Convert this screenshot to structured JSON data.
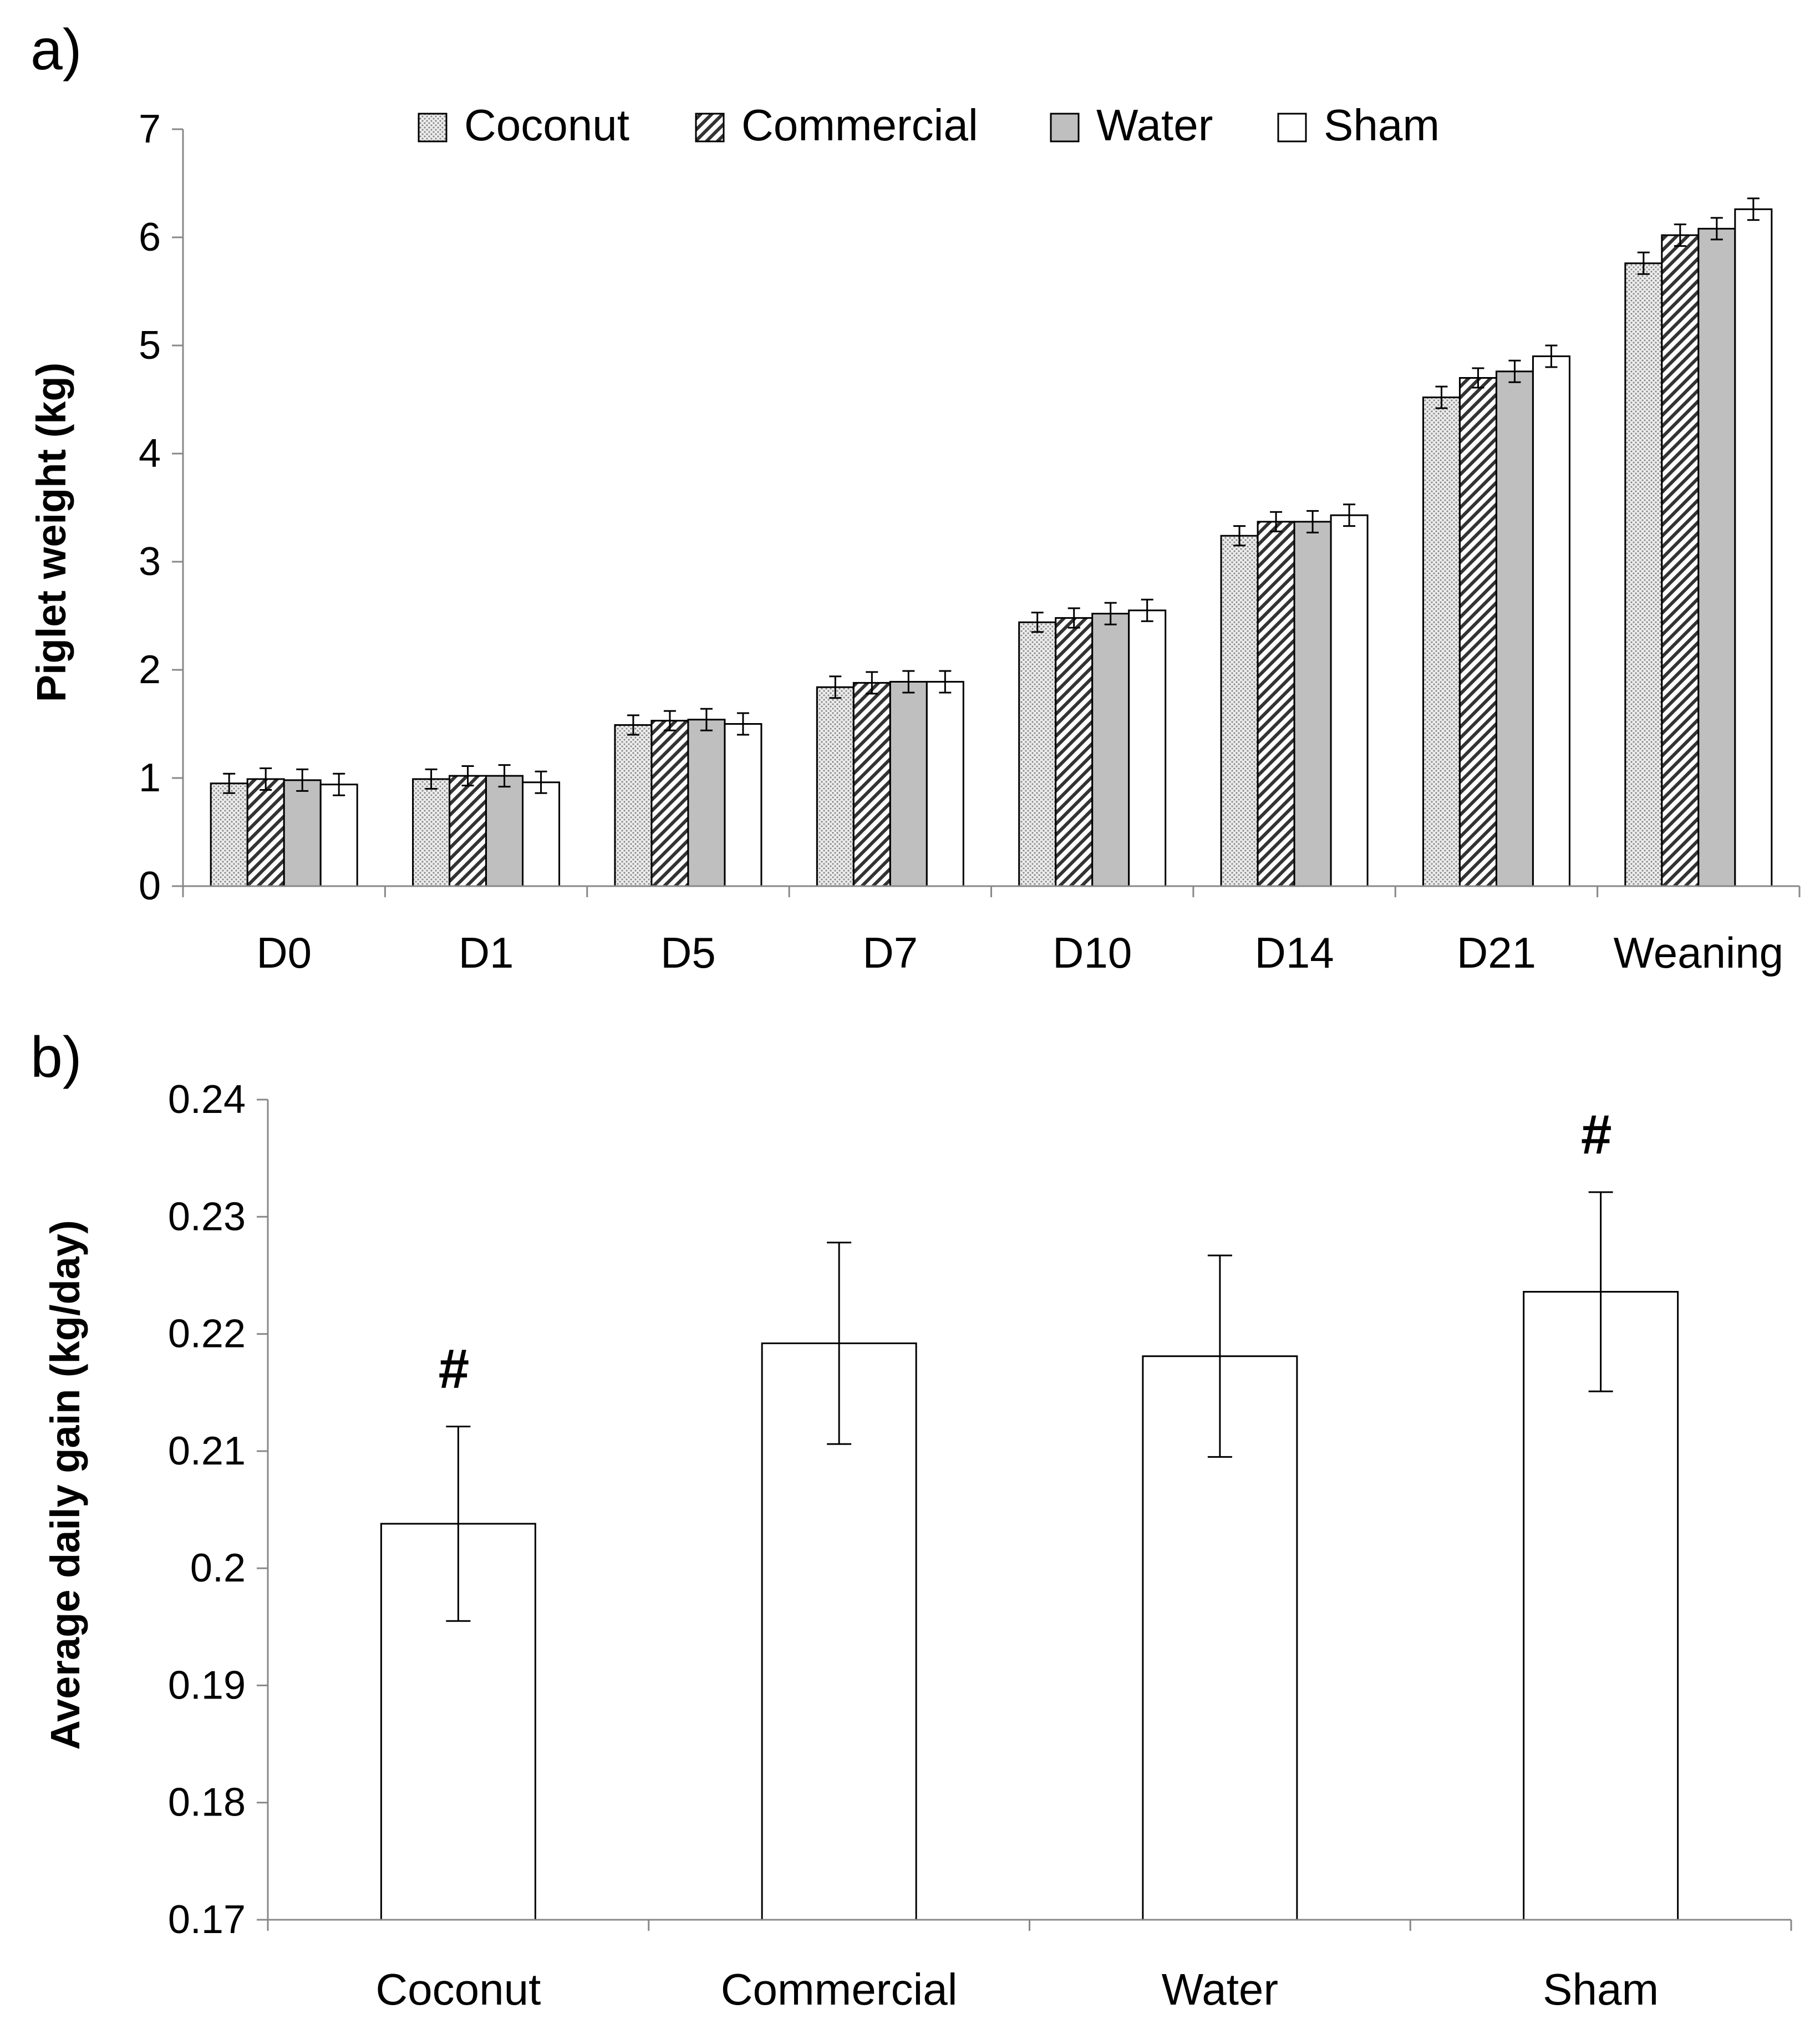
{
  "chart_data": [
    {
      "panel_label": "a)",
      "type": "bar",
      "title": "",
      "xlabel": "",
      "ylabel": "Piglet weight (kg)",
      "ylim": [
        0,
        7
      ],
      "yticks": [
        "0",
        "1",
        "2",
        "3",
        "4",
        "5",
        "6",
        "7"
      ],
      "grid": false,
      "legend_position": "top",
      "categories": [
        "D0",
        "D1",
        "D5",
        "D7",
        "D10",
        "D14",
        "D21",
        "Weaning"
      ],
      "series": [
        {
          "name": "Coconut",
          "pattern": "dots",
          "color": "#e6e6e6",
          "values": [
            0.95,
            0.99,
            1.49,
            1.84,
            2.44,
            3.24,
            4.52,
            5.76
          ],
          "errors": [
            0.09,
            0.09,
            0.09,
            0.1,
            0.09,
            0.09,
            0.1,
            0.1
          ]
        },
        {
          "name": "Commercial",
          "pattern": "diagonal",
          "color": "#ffffff",
          "values": [
            0.99,
            1.02,
            1.53,
            1.88,
            2.48,
            3.37,
            4.7,
            6.02
          ],
          "errors": [
            0.1,
            0.09,
            0.09,
            0.1,
            0.09,
            0.09,
            0.09,
            0.1
          ]
        },
        {
          "name": "Water",
          "pattern": "solid",
          "color": "#bfbfbf",
          "values": [
            0.98,
            1.02,
            1.54,
            1.89,
            2.52,
            3.37,
            4.76,
            6.08
          ],
          "errors": [
            0.1,
            0.1,
            0.1,
            0.1,
            0.1,
            0.1,
            0.1,
            0.1
          ]
        },
        {
          "name": "Sham",
          "pattern": "solid",
          "color": "#ffffff",
          "values": [
            0.94,
            0.96,
            1.5,
            1.89,
            2.55,
            3.43,
            4.9,
            6.26
          ],
          "errors": [
            0.1,
            0.1,
            0.1,
            0.1,
            0.1,
            0.1,
            0.1,
            0.1
          ]
        }
      ]
    },
    {
      "panel_label": "b)",
      "type": "bar",
      "title": "",
      "xlabel": "",
      "ylabel": "Average daily gain (kg/day)",
      "ylim": [
        0.17,
        0.24
      ],
      "yticks": [
        "0.17",
        "0.18",
        "0.19",
        "0.2",
        "0.21",
        "0.22",
        "0.23",
        "0.24"
      ],
      "grid": false,
      "categories": [
        "Coconut",
        "Commercial",
        "Water",
        "Sham"
      ],
      "values": [
        0.2038,
        0.2192,
        0.2181,
        0.2236
      ],
      "errors": [
        0.0083,
        0.0086,
        0.0086,
        0.0085
      ],
      "annotations": [
        "#",
        "",
        "",
        "#"
      ],
      "bar_color": "#ffffff"
    }
  ]
}
